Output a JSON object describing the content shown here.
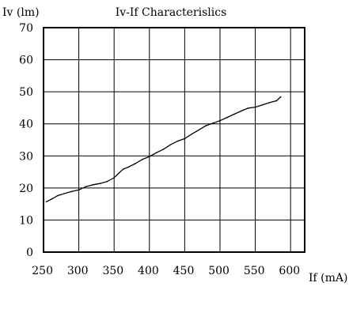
{
  "chart_data": {
    "type": "line",
    "title": "Iv-If Characterislics",
    "xlabel": "If (mA)",
    "ylabel": "Iv (lm)",
    "xlim": [
      250,
      620
    ],
    "ylim": [
      0,
      70
    ],
    "x_ticks": [
      "250",
      "300",
      "350",
      "400",
      "450",
      "500",
      "550",
      "600"
    ],
    "y_ticks": [
      "0",
      "10",
      "20",
      "30",
      "40",
      "50",
      "60",
      "70"
    ],
    "grid": true,
    "series": [
      {
        "x": [
          254,
          262,
          270,
          280,
          290,
          300,
          310,
          320,
          330,
          340,
          350,
          357,
          363,
          370,
          380,
          390,
          400,
          410,
          420,
          430,
          440,
          450,
          460,
          470,
          480,
          490,
          500,
          510,
          520,
          530,
          540,
          550,
          560,
          570,
          580,
          586
        ],
        "values": [
          15.7,
          16.6,
          17.6,
          18.3,
          18.9,
          19.4,
          20.4,
          21.0,
          21.4,
          22.0,
          23.2,
          24.7,
          25.9,
          26.5,
          27.6,
          28.9,
          29.8,
          31.0,
          32.1,
          33.5,
          34.6,
          35.4,
          36.8,
          38.1,
          39.4,
          40.2,
          41.0,
          42.0,
          43.0,
          44.0,
          44.9,
          45.2,
          45.9,
          46.6,
          47.2,
          48.4
        ]
      }
    ]
  }
}
